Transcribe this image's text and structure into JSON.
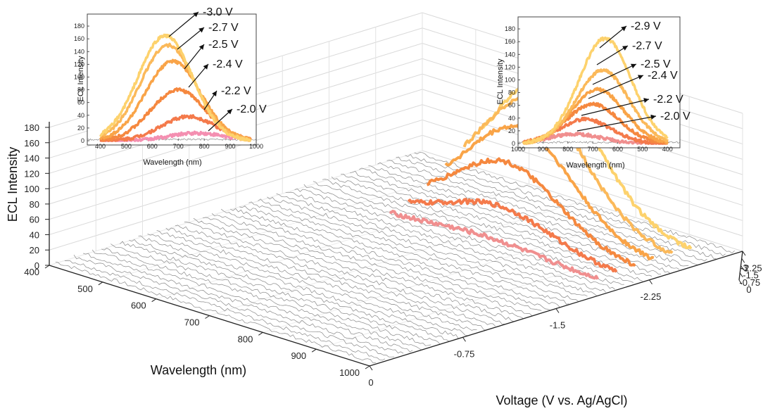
{
  "chart_data": {
    "type": "line",
    "subtype": "3d-waterfall",
    "main": {
      "zlabel": "ECL Intensity",
      "xlabel": "Wavelength (nm)",
      "ylabel": "Voltage (V vs. Ag/AgCl)",
      "z_ticks": [
        "0",
        "20",
        "40",
        "60",
        "80",
        "100",
        "120",
        "140",
        "160",
        "180"
      ],
      "wavelength_ticks": [
        "400",
        "500",
        "600",
        "700",
        "800",
        "900",
        "1000"
      ],
      "voltage_ticks_front": [
        "0",
        "-0.75",
        "-1.5",
        "-2.25",
        "-3"
      ],
      "voltage_ticks_right": [
        "-2.25",
        "-1.5",
        "-0.75",
        "0"
      ],
      "zlim": [
        0,
        180
      ],
      "wavelength_range": [
        400,
        1000
      ],
      "series": [
        {
          "name": "-2.0 V",
          "peak_wavelength": 740,
          "peak_intensity": 10,
          "color": "#f08f8f"
        },
        {
          "name": "-2.2 V",
          "peak_wavelength": 730,
          "peak_intensity": 40,
          "color": "#f47a4b"
        },
        {
          "name": "-2.4 V",
          "peak_wavelength": 710,
          "peak_intensity": 85,
          "color": "#f5883f"
        },
        {
          "name": "-2.5 V",
          "peak_wavelength": 700,
          "peak_intensity": 120,
          "color": "#f9a448"
        },
        {
          "name": "-2.7 V",
          "peak_wavelength": 690,
          "peak_intensity": 150,
          "color": "#fbb95a"
        },
        {
          "name": "-2.9 V",
          "peak_wavelength": 680,
          "peak_intensity": 165,
          "color": "#fdd26d"
        }
      ]
    },
    "inset_left": {
      "xlabel": "Wavelength (nm)",
      "ylabel": "ECL Intensity",
      "x_ticks": [
        "400",
        "500",
        "600",
        "700",
        "800",
        "900",
        "1000"
      ],
      "y_ticks": [
        "0",
        "20",
        "40",
        "60",
        "80",
        "100",
        "120",
        "140",
        "160",
        "180"
      ],
      "xlim": [
        350,
        1000
      ],
      "ylim": [
        0,
        190
      ],
      "series": [
        {
          "name": "-3.0 V",
          "peak_wavelength": 650,
          "peak_intensity": 165,
          "color": "#fdd26d"
        },
        {
          "name": "-2.7 V",
          "peak_wavelength": 660,
          "peak_intensity": 150,
          "color": "#fbb95a"
        },
        {
          "name": "-2.5 V",
          "peak_wavelength": 680,
          "peak_intensity": 125,
          "color": "#f9a448"
        },
        {
          "name": "-2.4 V",
          "peak_wavelength": 700,
          "peak_intensity": 80,
          "color": "#f5883f"
        },
        {
          "name": "-2.2 V",
          "peak_wavelength": 740,
          "peak_intensity": 38,
          "color": "#f47a4b"
        },
        {
          "name": "-2.0 V",
          "peak_wavelength": 770,
          "peak_intensity": 12,
          "color": "#f48fb1"
        }
      ]
    },
    "inset_right": {
      "xlabel": "Wavelength (nm)",
      "ylabel": "ECL Intensity",
      "x_ticks": [
        "1000",
        "900",
        "800",
        "700",
        "600",
        "500",
        "400"
      ],
      "y_ticks": [
        "0",
        "20",
        "40",
        "60",
        "80",
        "100",
        "120",
        "140",
        "160",
        "180"
      ],
      "xlim": [
        1000,
        350
      ],
      "ylim": [
        0,
        190
      ],
      "series": [
        {
          "name": "-2.9 V",
          "peak_wavelength": 650,
          "peak_intensity": 165,
          "color": "#fdd26d"
        },
        {
          "name": "-2.7 V",
          "peak_wavelength": 660,
          "peak_intensity": 115,
          "color": "#fbb95a"
        },
        {
          "name": "-2.5 V",
          "peak_wavelength": 680,
          "peak_intensity": 85,
          "color": "#f9a448"
        },
        {
          "name": "-2.4 V",
          "peak_wavelength": 700,
          "peak_intensity": 62,
          "color": "#f5883f"
        },
        {
          "name": "-2.2 V",
          "peak_wavelength": 730,
          "peak_intensity": 38,
          "color": "#f47a4b"
        },
        {
          "name": "-2.0 V",
          "peak_wavelength": 770,
          "peak_intensity": 15,
          "color": "#f08f8f"
        }
      ]
    }
  }
}
